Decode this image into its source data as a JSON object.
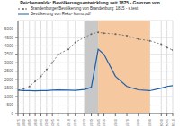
{
  "chart_data": {
    "type": "line",
    "title": "Reichenwalde: Bevölkerungsentwicklung seit 1875 - Grenzen von",
    "x": [
      1875,
      1880,
      1885,
      1890,
      1895,
      1900,
      1905,
      1910,
      1919,
      1925,
      1933,
      1939,
      1945,
      1950,
      1960,
      1970,
      1980,
      1990,
      2000,
      2005,
      2010
    ],
    "series": [
      {
        "name": "Brandenburger Bevölkerung von Brandenburg: 1815 - s.test",
        "color": "#666666",
        "line_style": "dashed",
        "marker": "o",
        "values": [
          1380,
          1450,
          1600,
          1900,
          2200,
          2600,
          3000,
          3500,
          3800,
          4200,
          4500,
          4700,
          4800,
          4750,
          4700,
          4600,
          4400,
          4300,
          4100,
          3900,
          3750
        ]
      },
      {
        "name": "Bevölkerung von Reko- kumu.pdf",
        "color": "#1a5fa8",
        "line_style": "solid",
        "values": [
          1380,
          1360,
          1350,
          1340,
          1350,
          1360,
          1380,
          1400,
          1380,
          1370,
          1420,
          1550,
          3800,
          3500,
          2200,
          1600,
          1400,
          1350,
          1500,
          1600,
          1650
        ]
      }
    ],
    "spans": [
      {
        "start": 1933,
        "end": 1945,
        "color": "#c8c8c8"
      },
      {
        "start": 1945,
        "end": 1990,
        "color": "#f5c8a0"
      }
    ],
    "xlim": [
      1875,
      2010
    ],
    "xticks": [
      1875,
      1880,
      1885,
      1890,
      1895,
      1900,
      1905,
      1910,
      1919,
      1925,
      1933,
      1939,
      1945,
      1950,
      1960,
      1970,
      1980,
      1990,
      2000,
      2005,
      2010
    ],
    "ylim": [
      0,
      5500
    ],
    "yticks": [
      0,
      500,
      1000,
      1500,
      2000,
      2500,
      3000,
      3500,
      4000,
      4500,
      5000
    ],
    "grid": true,
    "legend": "upper left"
  }
}
